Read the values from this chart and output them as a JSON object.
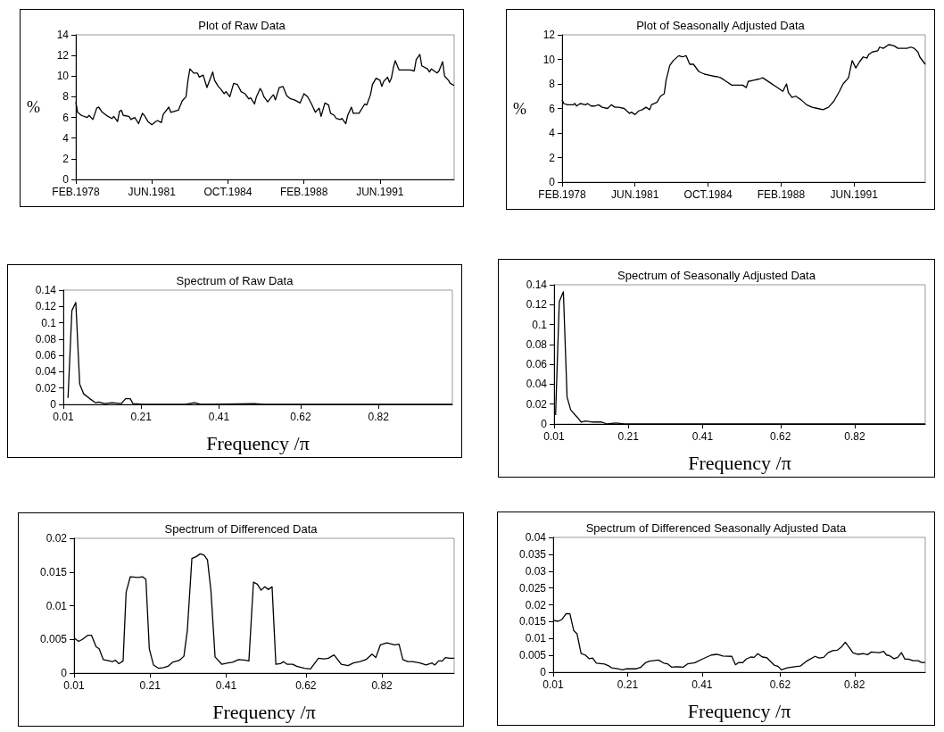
{
  "chart_data": [
    {
      "type": "line",
      "title": "Plot of Raw Data",
      "ylabel": "%",
      "xlim": [
        "1978-02",
        "1994-09"
      ],
      "xticks": [
        {
          "value": "1978-02",
          "label": "FEB.1978"
        },
        {
          "value": "1981-06",
          "label": "JUN.1981"
        },
        {
          "value": "1984-10",
          "label": "OCT.1984"
        },
        {
          "value": "1988-02",
          "label": "FEB.1988"
        },
        {
          "value": "1991-06",
          "label": "JUN.1991"
        }
      ],
      "ylim": [
        0,
        14
      ],
      "yticks": [
        0,
        2,
        4,
        6,
        8,
        10,
        12,
        14
      ],
      "x": [
        "1978-02",
        "1978-03",
        "1978-05",
        "1978-08",
        "1978-09",
        "1978-11",
        "1979-01",
        "1979-02",
        "1979-04",
        "1979-07",
        "1979-09",
        "1979-10",
        "1979-12",
        "1980-01",
        "1980-02",
        "1980-03",
        "1980-06",
        "1980-07",
        "1980-09",
        "1980-11",
        "1981-01",
        "1981-02",
        "1981-04",
        "1981-06",
        "1981-08",
        "1981-09",
        "1981-11",
        "1981-12",
        "1982-03",
        "1982-04",
        "1982-06",
        "1982-08",
        "1982-10",
        "1982-12",
        "1983-01",
        "1983-02",
        "1983-04",
        "1983-06",
        "1983-07",
        "1983-09",
        "1983-11",
        "1984-02",
        "1984-03",
        "1984-05",
        "1984-06",
        "1984-08",
        "1984-09",
        "1984-11",
        "1985-01",
        "1985-03",
        "1985-05",
        "1985-07",
        "1985-09",
        "1985-10",
        "1985-12",
        "1986-01",
        "1986-03",
        "1986-04",
        "1986-05",
        "1986-07",
        "1986-09",
        "1986-10",
        "1986-11",
        "1987-01",
        "1987-03",
        "1987-05",
        "1987-07",
        "1987-09",
        "1987-12",
        "1988-02",
        "1988-04",
        "1988-06",
        "1988-08",
        "1988-10",
        "1988-11",
        "1989-01",
        "1989-03",
        "1989-04",
        "1989-06",
        "1989-07",
        "1989-09",
        "1989-10",
        "1989-12",
        "1990-01",
        "1990-03",
        "1990-04",
        "1990-07",
        "1990-10",
        "1990-11",
        "1991-01",
        "1991-02",
        "1991-04",
        "1991-06",
        "1991-07",
        "1991-08",
        "1991-10",
        "1991-11",
        "1991-12",
        "1992-01",
        "1992-02",
        "1992-04",
        "1992-07",
        "1992-10",
        "1992-12",
        "1993-01",
        "1993-03",
        "1993-04",
        "1993-07",
        "1993-08",
        "1993-09",
        "1993-12",
        "1994-01",
        "1994-03",
        "1994-04",
        "1994-06",
        "1994-07",
        "1994-09"
      ],
      "series": [
        {
          "color": "#000000",
          "values": [
            7.5,
            6.5,
            6.2,
            6.0,
            6.2,
            5.8,
            6.9,
            7.0,
            6.5,
            6.1,
            5.9,
            6.1,
            5.6,
            6.6,
            6.7,
            6.2,
            6.1,
            5.8,
            6.0,
            5.4,
            6.4,
            6.2,
            5.6,
            5.3,
            5.6,
            5.7,
            5.5,
            6.3,
            7.0,
            6.5,
            6.6,
            6.7,
            7.6,
            8.0,
            9.6,
            10.7,
            10.3,
            10.3,
            9.9,
            10.1,
            8.9,
            10.4,
            9.6,
            9.0,
            8.8,
            8.3,
            8.5,
            8.0,
            9.3,
            9.2,
            8.5,
            8.3,
            7.8,
            7.9,
            7.3,
            8.0,
            8.8,
            8.5,
            8.0,
            7.5,
            8.0,
            8.2,
            7.7,
            8.9,
            9.0,
            8.1,
            7.8,
            7.7,
            7.4,
            8.3,
            8.0,
            7.3,
            6.5,
            6.9,
            6.1,
            7.4,
            7.2,
            6.4,
            6.2,
            5.9,
            5.8,
            5.9,
            5.4,
            6.2,
            7.0,
            6.4,
            6.4,
            7.3,
            7.2,
            8.2,
            9.2,
            9.8,
            9.6,
            9.0,
            9.5,
            9.9,
            9.4,
            9.8,
            10.8,
            11.5,
            10.6,
            10.6,
            10.6,
            10.5,
            11.6,
            12.1,
            11.0,
            10.7,
            10.4,
            10.7,
            10.3,
            10.5,
            11.4,
            10.0,
            9.6,
            9.3,
            9.1
          ]
        }
      ]
    },
    {
      "type": "line",
      "title": "Plot of Seasonally Adjusted Data",
      "ylabel": "%",
      "xlim": [
        "1978-02",
        "1994-09"
      ],
      "xticks": [
        {
          "value": "1978-02",
          "label": "FEB.1978"
        },
        {
          "value": "1981-06",
          "label": "JUN.1981"
        },
        {
          "value": "1984-10",
          "label": "OCT.1984"
        },
        {
          "value": "1988-02",
          "label": "FEB.1988"
        },
        {
          "value": "1991-06",
          "label": "JUN.1991"
        }
      ],
      "ylim": [
        0,
        12
      ],
      "yticks": [
        0,
        2,
        4,
        6,
        8,
        10,
        12
      ],
      "x": [
        "1978-02",
        "1978-03",
        "1978-05",
        "1978-08",
        "1978-09",
        "1978-10",
        "1978-12",
        "1979-03",
        "1979-04",
        "1979-06",
        "1979-08",
        "1979-10",
        "1979-12",
        "1980-03",
        "1980-05",
        "1980-07",
        "1980-09",
        "1980-12",
        "1981-03",
        "1981-04",
        "1981-06",
        "1981-08",
        "1981-10",
        "1981-12",
        "1982-02",
        "1982-03",
        "1982-06",
        "1982-08",
        "1982-10",
        "1982-11",
        "1983-01",
        "1983-03",
        "1983-06",
        "1983-08",
        "1983-10",
        "1983-12",
        "1984-02",
        "1984-05",
        "1984-08",
        "1984-11",
        "1985-02",
        "1985-03",
        "1985-05",
        "1985-08",
        "1985-11",
        "1986-02",
        "1986-05",
        "1986-07",
        "1986-08",
        "1986-11",
        "1987-02",
        "1987-04",
        "1987-06",
        "1987-08",
        "1987-11",
        "1988-01",
        "1988-03",
        "1988-05",
        "1988-06",
        "1988-08",
        "1988-10",
        "1989-01",
        "1989-04",
        "1989-07",
        "1989-10",
        "1990-01",
        "1990-04",
        "1990-07",
        "1990-10",
        "1990-12",
        "1991-03",
        "1991-05",
        "1991-07",
        "1991-09",
        "1991-11",
        "1992-01",
        "1992-02",
        "1992-04",
        "1992-07",
        "1992-08",
        "1992-10",
        "1993-01",
        "1993-04",
        "1993-06",
        "1993-11",
        "1994-01",
        "1994-03",
        "1994-05",
        "1994-06",
        "1994-08",
        "1994-09"
      ],
      "series": [
        {
          "color": "#000000",
          "values": [
            6.7,
            6.4,
            6.3,
            6.3,
            6.4,
            6.2,
            6.4,
            6.3,
            6.4,
            6.2,
            6.2,
            6.3,
            6.1,
            6.0,
            6.3,
            6.1,
            6.1,
            6.0,
            5.6,
            5.7,
            5.5,
            5.8,
            5.9,
            6.1,
            5.9,
            6.3,
            6.5,
            7.0,
            7.2,
            8.3,
            9.5,
            9.9,
            10.3,
            10.2,
            10.3,
            9.6,
            9.6,
            9.0,
            8.8,
            8.7,
            8.6,
            8.6,
            8.5,
            8.2,
            7.9,
            7.9,
            7.9,
            7.7,
            8.2,
            8.3,
            8.4,
            8.5,
            8.3,
            8.1,
            7.8,
            7.6,
            7.4,
            8.0,
            7.3,
            6.9,
            7.0,
            6.7,
            6.3,
            6.1,
            6.0,
            5.9,
            6.1,
            6.6,
            7.4,
            8.0,
            8.5,
            9.9,
            9.3,
            9.8,
            10.2,
            10.1,
            10.4,
            10.6,
            10.7,
            11.0,
            10.9,
            11.2,
            11.1,
            10.9,
            10.9,
            11.0,
            10.9,
            10.6,
            10.2,
            9.8,
            9.6
          ]
        }
      ]
    },
    {
      "type": "line",
      "title": "Spectrum of Raw Data",
      "xlabel": "Frequency /π",
      "xlim": [
        0.01,
        1.01
      ],
      "xticks": [
        0.01,
        0.21,
        0.41,
        0.62,
        0.82
      ],
      "ylim": [
        0,
        0.14
      ],
      "yticks": [
        0,
        0.02,
        0.04,
        0.06,
        0.08,
        0.1,
        0.12,
        0.14
      ],
      "x": [
        0.022,
        0.032,
        0.042,
        0.052,
        0.062,
        0.078,
        0.093,
        0.101,
        0.116,
        0.135,
        0.159,
        0.17,
        0.182,
        0.189,
        0.216,
        0.324,
        0.347,
        0.363,
        0.501,
        0.524,
        1.01
      ],
      "series": [
        {
          "color": "#000000",
          "values": [
            0.008,
            0.115,
            0.125,
            0.025,
            0.013,
            0.007,
            0.002,
            0.003,
            0.001,
            0.002,
            0.001,
            0.007,
            0.007,
            0.001,
            0,
            0,
            0.002,
            0,
            0.001,
            0,
            0
          ]
        }
      ]
    },
    {
      "type": "line",
      "title": "Spectrum of Seasonally Adjusted Data",
      "xlabel": "Frequency /π",
      "xlim": [
        0.01,
        1.01
      ],
      "xticks": [
        0.01,
        0.21,
        0.41,
        0.62,
        0.82
      ],
      "ylim": [
        0,
        0.14
      ],
      "yticks": [
        0,
        0.02,
        0.04,
        0.06,
        0.08,
        0.1,
        0.12,
        0.14
      ],
      "x": [
        0.014,
        0.024,
        0.035,
        0.045,
        0.055,
        0.072,
        0.083,
        0.095,
        0.114,
        0.138,
        0.153,
        0.176,
        0.199,
        0.223,
        0.246,
        0.284,
        0.308,
        1.01
      ],
      "series": [
        {
          "color": "#000000",
          "values": [
            0.009,
            0.123,
            0.133,
            0.027,
            0.014,
            0.007,
            0.002,
            0.003,
            0.002,
            0.002,
            0,
            0.001,
            0,
            0,
            0,
            0,
            0,
            0
          ]
        }
      ]
    },
    {
      "type": "line",
      "title": "Spectrum of Differenced Data",
      "xlabel": "Frequency /π",
      "xlim": [
        0.01,
        1.01
      ],
      "xticks": [
        0.01,
        0.21,
        0.41,
        0.62,
        0.82
      ],
      "ylim": [
        0,
        0.02
      ],
      "yticks": [
        0,
        0.005,
        0.01,
        0.015,
        0.02
      ],
      "x": [
        0.01,
        0.022,
        0.032,
        0.046,
        0.056,
        0.068,
        0.076,
        0.087,
        0.111,
        0.119,
        0.128,
        0.139,
        0.147,
        0.158,
        0.178,
        0.19,
        0.199,
        0.208,
        0.219,
        0.233,
        0.245,
        0.257,
        0.269,
        0.287,
        0.299,
        0.308,
        0.32,
        0.332,
        0.342,
        0.352,
        0.361,
        0.37,
        0.381,
        0.399,
        0.415,
        0.427,
        0.443,
        0.462,
        0.47,
        0.482,
        0.492,
        0.502,
        0.512,
        0.521,
        0.531,
        0.541,
        0.553,
        0.561,
        0.571,
        0.585,
        0.596,
        0.616,
        0.632,
        0.653,
        0.667,
        0.679,
        0.694,
        0.713,
        0.731,
        0.745,
        0.762,
        0.778,
        0.794,
        0.804,
        0.816,
        0.833,
        0.853,
        0.865,
        0.875,
        0.888,
        0.9,
        0.92,
        0.936,
        0.952,
        0.959,
        0.969,
        0.979,
        0.987,
        0.999,
        1.01
      ],
      "series": [
        {
          "color": "#000000",
          "values": [
            0.0052,
            0.0047,
            0.005,
            0.0056,
            0.0056,
            0.0039,
            0.0036,
            0.002,
            0.0017,
            0.0019,
            0.0014,
            0.0018,
            0.012,
            0.0143,
            0.0142,
            0.0143,
            0.0139,
            0.0036,
            0.0012,
            0.0007,
            0.0008,
            0.001,
            0.0016,
            0.0019,
            0.0025,
            0.0063,
            0.017,
            0.0173,
            0.0177,
            0.0175,
            0.0168,
            0.0123,
            0.0024,
            0.0013,
            0.0015,
            0.0016,
            0.002,
            0.0019,
            0.0018,
            0.0135,
            0.0132,
            0.0123,
            0.0128,
            0.0124,
            0.0128,
            0.0013,
            0.0014,
            0.0017,
            0.0013,
            0.0013,
            0.001,
            0.0007,
            0.0006,
            0.0022,
            0.0021,
            0.0022,
            0.0027,
            0.0013,
            0.0011,
            0.0015,
            0.0017,
            0.002,
            0.0028,
            0.0023,
            0.0042,
            0.0045,
            0.0042,
            0.0043,
            0.002,
            0.0017,
            0.0017,
            0.0015,
            0.0012,
            0.0015,
            0.0012,
            0.0018,
            0.0018,
            0.0023,
            0.0022,
            0.0022
          ]
        }
      ]
    },
    {
      "type": "line",
      "title": "Spectrum of Differenced Seasonally Adjusted Data",
      "xlabel": "Frequency /π",
      "xlim": [
        0.01,
        1.01
      ],
      "xticks": [
        0.01,
        0.21,
        0.41,
        0.62,
        0.82
      ],
      "ylim": [
        0,
        0.04
      ],
      "yticks": [
        0,
        0.005,
        0.01,
        0.015,
        0.02,
        0.025,
        0.03,
        0.035,
        0.04
      ],
      "x": [
        0.01,
        0.023,
        0.034,
        0.045,
        0.055,
        0.065,
        0.074,
        0.085,
        0.096,
        0.107,
        0.116,
        0.126,
        0.148,
        0.159,
        0.167,
        0.183,
        0.197,
        0.207,
        0.234,
        0.246,
        0.258,
        0.269,
        0.293,
        0.307,
        0.317,
        0.328,
        0.34,
        0.36,
        0.372,
        0.391,
        0.411,
        0.435,
        0.45,
        0.466,
        0.49,
        0.5,
        0.509,
        0.519,
        0.529,
        0.541,
        0.55,
        0.56,
        0.572,
        0.584,
        0.604,
        0.615,
        0.623,
        0.639,
        0.663,
        0.674,
        0.69,
        0.714,
        0.725,
        0.737,
        0.749,
        0.761,
        0.773,
        0.784,
        0.795,
        0.804,
        0.816,
        0.828,
        0.843,
        0.855,
        0.865,
        0.887,
        0.898,
        0.906,
        0.914,
        0.926,
        0.936,
        0.946,
        0.955,
        0.965,
        0.977,
        0.991,
        1.0,
        1.01
      ],
      "series": [
        {
          "color": "#000000",
          "values": [
            0.0154,
            0.0151,
            0.0157,
            0.0174,
            0.0173,
            0.0124,
            0.0114,
            0.0055,
            0.0051,
            0.004,
            0.0042,
            0.0027,
            0.0024,
            0.0019,
            0.0013,
            0.001,
            0.0007,
            0.001,
            0.001,
            0.0015,
            0.0028,
            0.0033,
            0.0036,
            0.0027,
            0.0025,
            0.0015,
            0.0016,
            0.0015,
            0.0025,
            0.0028,
            0.0039,
            0.0051,
            0.0053,
            0.0048,
            0.0047,
            0.0022,
            0.0029,
            0.0028,
            0.0039,
            0.0045,
            0.0044,
            0.0055,
            0.0045,
            0.0043,
            0.0021,
            0.0017,
            0.0007,
            0.0013,
            0.0017,
            0.0018,
            0.0032,
            0.0047,
            0.0042,
            0.0044,
            0.0058,
            0.0064,
            0.0065,
            0.0074,
            0.0089,
            0.0076,
            0.0057,
            0.0053,
            0.0055,
            0.0052,
            0.006,
            0.0058,
            0.0062,
            0.0051,
            0.0049,
            0.004,
            0.0044,
            0.0058,
            0.0039,
            0.0039,
            0.0034,
            0.0034,
            0.0029,
            0.0029
          ]
        }
      ]
    }
  ]
}
